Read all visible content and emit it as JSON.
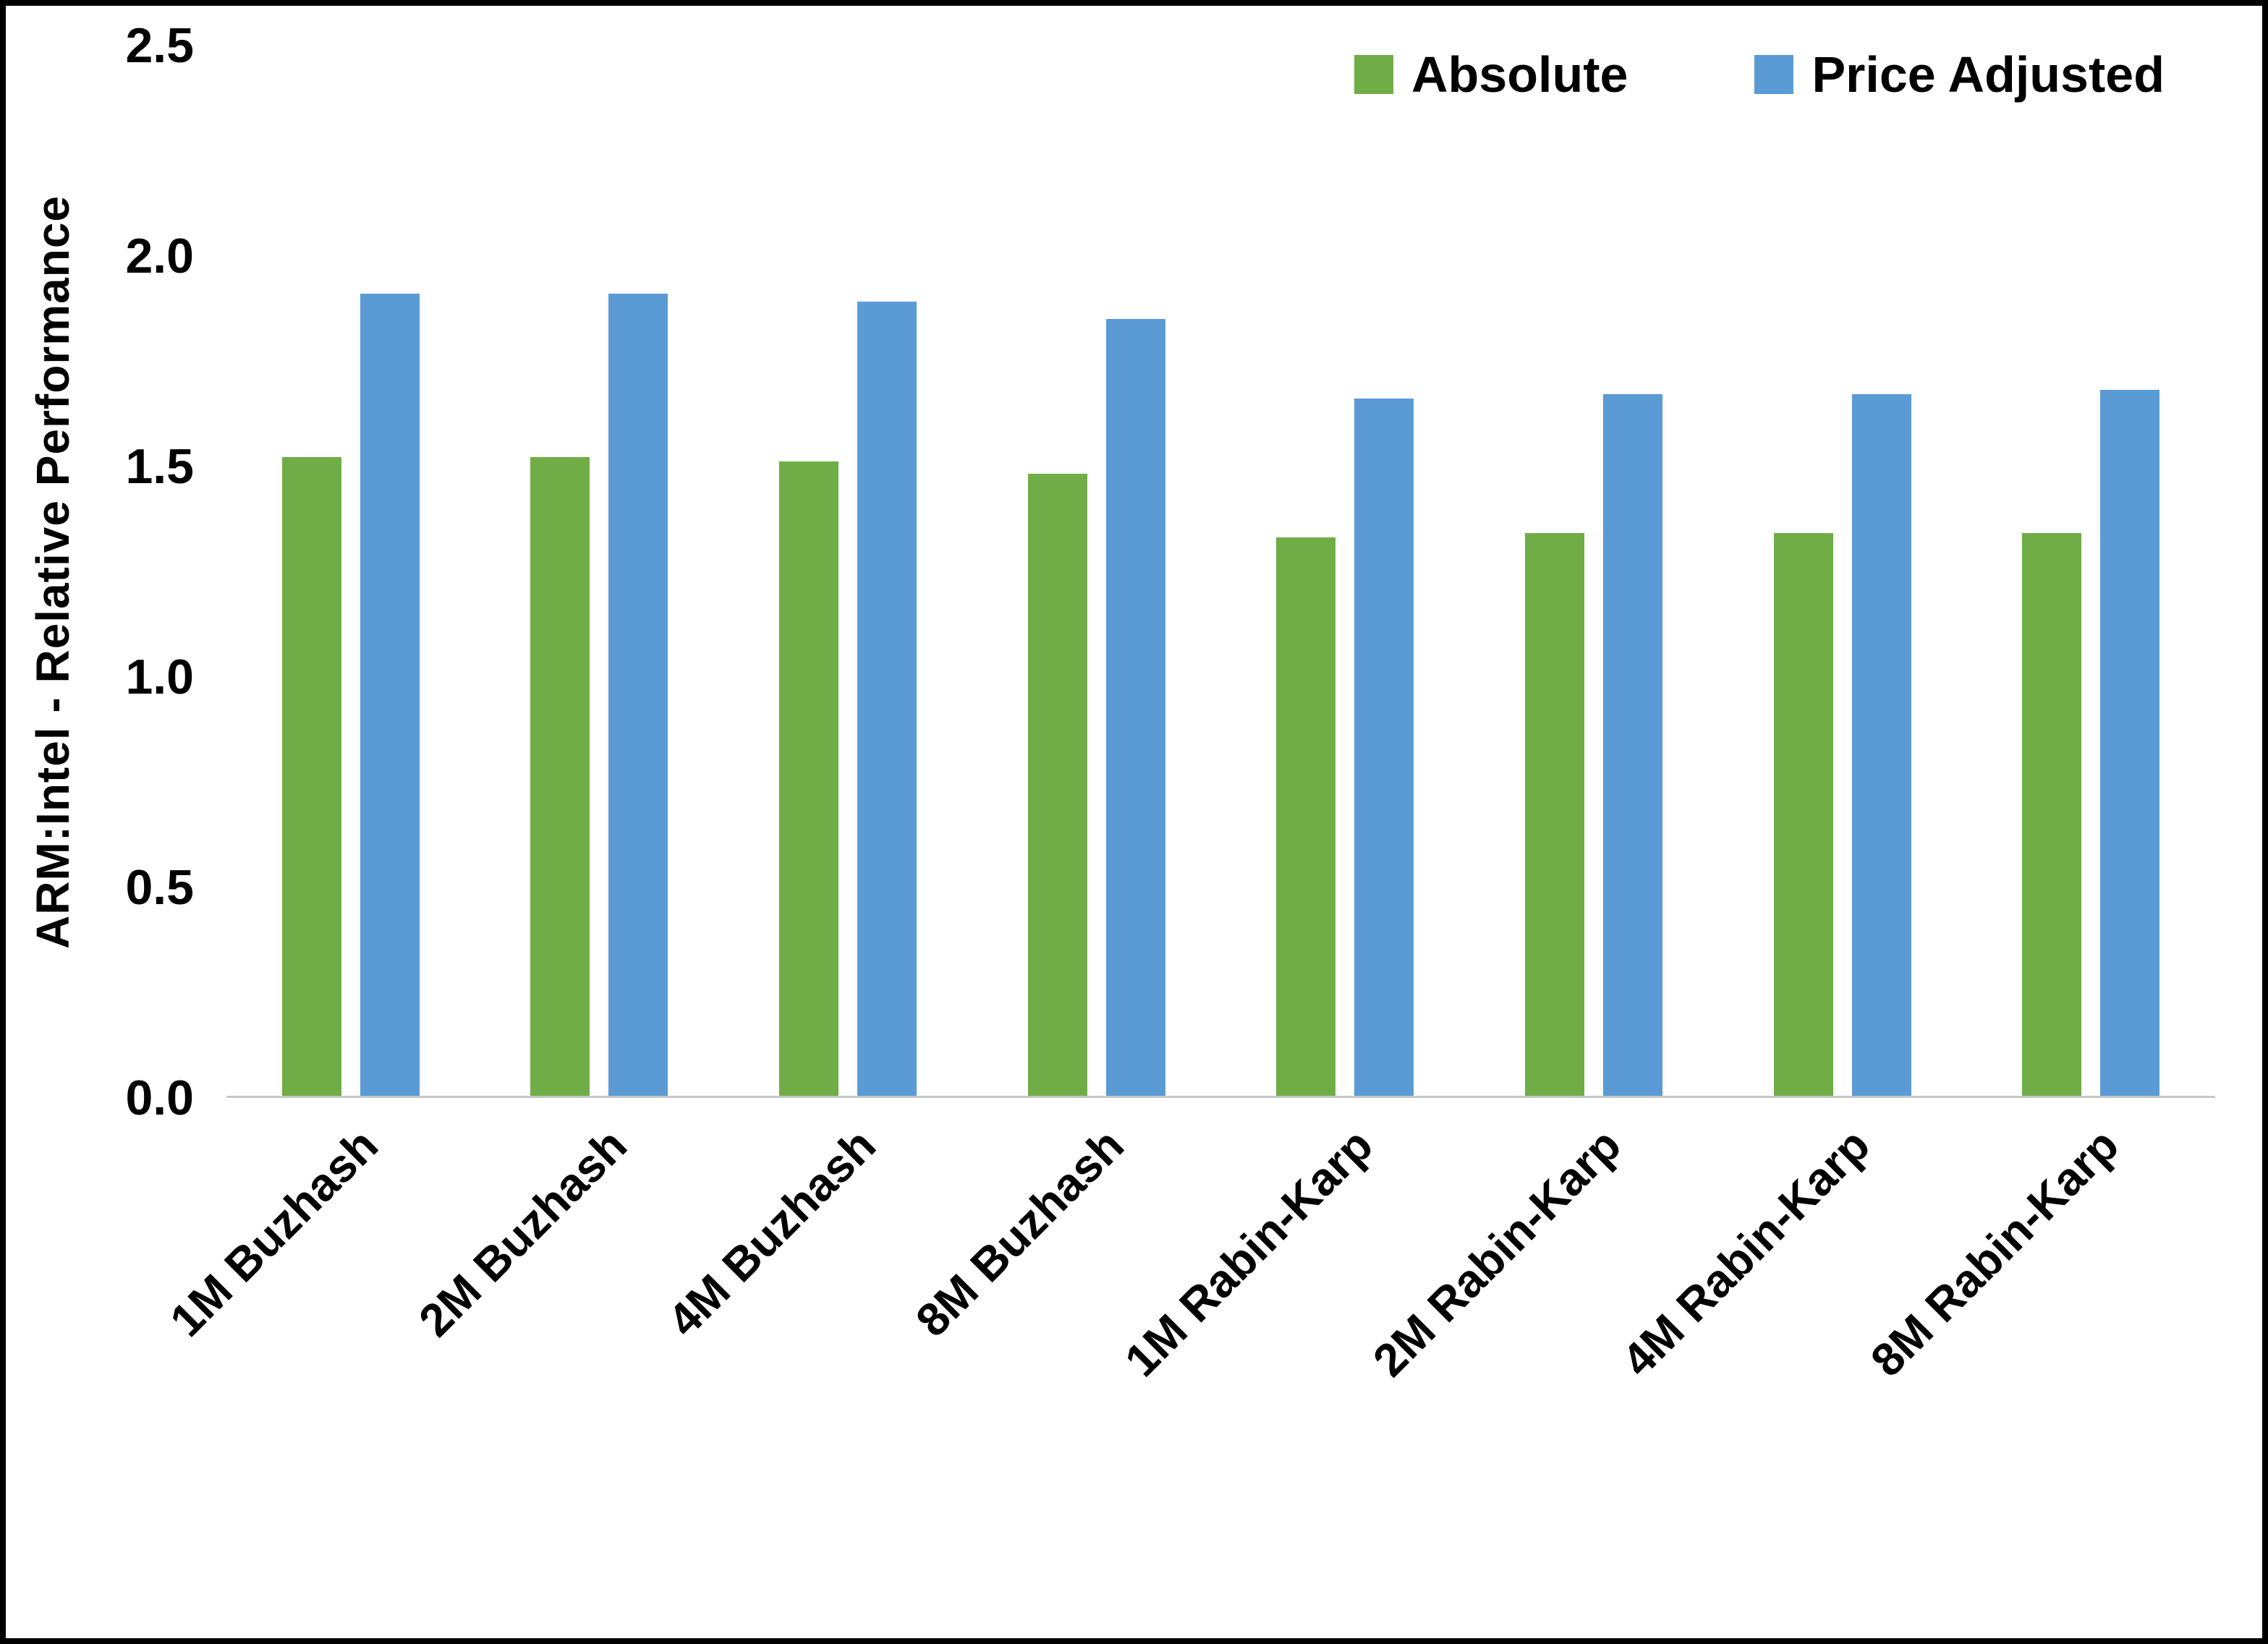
{
  "chart_data": {
    "type": "bar",
    "title": "",
    "xlabel": "",
    "ylabel": "ARM:Intel - Relative Performance",
    "ylim": [
      0,
      2.5
    ],
    "yticks": [
      0,
      0.5,
      1.0,
      1.5,
      2.0,
      2.5
    ],
    "ytick_labels": [
      "0.0",
      "0.5",
      "1.0",
      "1.5",
      "2.0",
      "2.5"
    ],
    "grid": false,
    "legend_position": "top-right",
    "categories": [
      "1M Buzhash",
      "2M Buzhash",
      "4M Buzhash",
      "8M Buzhash",
      "1M Rabin-Karp",
      "2M Rabin-Karp",
      "4M Rabin-Karp",
      "8M Rabin-Karp"
    ],
    "series": [
      {
        "name": "Absolute",
        "color": "#70AD47",
        "values": [
          1.52,
          1.52,
          1.51,
          1.48,
          1.33,
          1.34,
          1.34,
          1.34
        ]
      },
      {
        "name": "Price Adjusted",
        "color": "#5B9BD5",
        "values": [
          1.91,
          1.91,
          1.89,
          1.85,
          1.66,
          1.67,
          1.67,
          1.68
        ]
      }
    ]
  },
  "colors": {
    "absolute": "#70AD47",
    "price_adjusted": "#5B9BD5",
    "axis_line": "#c6c6c6",
    "frame_border": "#000000"
  }
}
